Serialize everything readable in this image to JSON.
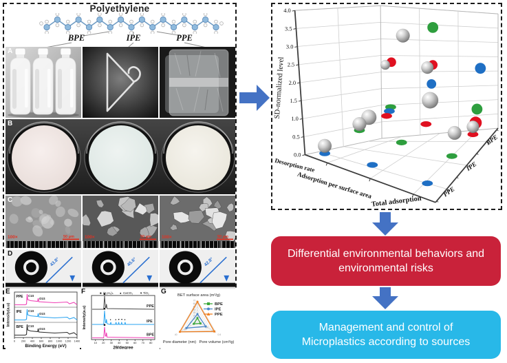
{
  "figure": {
    "title": "Polyethylene",
    "source_labels": [
      "BPE",
      "IPE",
      "PPE"
    ],
    "panel_letters": [
      "A",
      "B",
      "C",
      "D",
      "E",
      "F",
      "G"
    ],
    "sem": {
      "magnification": "100×",
      "scale_bar": "50 μm"
    },
    "contact_angles": [
      "43.8°",
      "45.6°",
      "42.8°"
    ]
  },
  "chart_data": [
    {
      "id": "sd-normalized-3d-scatter",
      "type": "scatter",
      "zlabel": "SD-normalized level",
      "z_ticks": [
        "4.0",
        "3.5",
        "3.0",
        "2.5",
        "2.0",
        "1.5",
        "1.0",
        "0.5",
        "0.0"
      ],
      "zlim": [
        0.0,
        4.0
      ],
      "x_tick_labels": [
        "Desorption rate",
        "Adsorption per surface area",
        "Total adsorption"
      ],
      "y_tick_labels": [
        "BPE",
        "IPE",
        "PPE"
      ],
      "point_style": "gray 3D spheres = data; green/red/blue flat markers = plane projections",
      "values_estimated": [
        {
          "source": "BPE",
          "desorption_rate": 0.5,
          "adsorption_per_surface_area": 2.6,
          "total_adsorption": 0.9
        },
        {
          "source": "IPE",
          "desorption_rate": 1.2,
          "adsorption_per_surface_area": 3.4,
          "total_adsorption": 1.0
        },
        {
          "source": "PPE",
          "desorption_rate": 1.1,
          "adsorption_per_surface_area": 1.6,
          "total_adsorption": 2.6
        }
      ],
      "render": {
        "spheres": [
          [
            192,
            45,
            10
          ],
          [
            166,
            88,
            7
          ],
          [
            228,
            92,
            9
          ],
          [
            232,
            140,
            12
          ],
          [
            142,
            165,
            11
          ],
          [
            128,
            175,
            10
          ],
          [
            295,
            179,
            9
          ],
          [
            268,
            188,
            10
          ],
          [
            77,
            207,
            10
          ]
        ],
        "wall_dots": [
          [
            236,
            33,
            "g",
            8
          ],
          [
            175,
            84,
            "r",
            7
          ],
          [
            236,
            88,
            "r",
            7
          ],
          [
            306,
            93,
            "b",
            8
          ],
          [
            234,
            116,
            "b",
            7
          ],
          [
            301,
            153,
            "g",
            8
          ],
          [
            299,
            173,
            "r",
            9
          ]
        ],
        "floor_dots": [
          [
            174,
            150,
            "g"
          ],
          [
            172,
            156,
            "b"
          ],
          [
            128,
            184,
            "g"
          ],
          [
            168,
            163,
            "r"
          ],
          [
            226,
            175,
            "r"
          ],
          [
            295,
            190,
            "r"
          ],
          [
            190,
            202,
            "g"
          ],
          [
            264,
            222,
            "g"
          ],
          [
            147,
            235,
            "b"
          ],
          [
            228,
            262,
            "b"
          ],
          [
            77,
            218,
            "b"
          ]
        ]
      }
    },
    {
      "id": "xps-survey",
      "type": "line",
      "xlabel": "Binding Energy (eV)",
      "ylabel": "Intensity(a.u)",
      "x_ticks": [
        0,
        200,
        400,
        600,
        800,
        1000,
        1200,
        1400
      ],
      "peaks": [
        {
          "label": "C1S",
          "binding_energy_eV": 285
        },
        {
          "label": "O1S",
          "binding_energy_eV": 532
        }
      ],
      "series": [
        {
          "name": "PPE",
          "color": "#ef3db4"
        },
        {
          "name": "IPE",
          "color": "#29a3f0"
        },
        {
          "name": "BPE",
          "color": "#2b2b2b"
        }
      ]
    },
    {
      "id": "xrd-patterns",
      "type": "line",
      "xlabel": "2θ/degree",
      "ylabel": "Intensity(a.u)",
      "x_ticks": [
        10,
        20,
        30,
        40,
        50,
        60,
        70,
        80
      ],
      "legend": [
        {
          "marker": "■",
          "label": "(C₂H₄)ₙ"
        },
        {
          "marker": "●",
          "label": "CaCO₃"
        },
        {
          "marker": "▼",
          "label": "TiO₂"
        }
      ],
      "main_peaks_2theta": [
        21.5,
        23.9
      ],
      "ipe_minor_peaks_2theta": [
        29.4,
        36.0,
        39.4,
        43.1,
        47.5
      ],
      "series": [
        {
          "name": "PPE",
          "color": "#4a4a4a"
        },
        {
          "name": "IPE",
          "color": "#29a3f0"
        },
        {
          "name": "BPE",
          "color": "#ef3db4"
        }
      ]
    },
    {
      "id": "surface-properties-radar",
      "type": "radar",
      "axes": [
        {
          "label": "BET surface area (m²/g)",
          "max": 70,
          "ticks": [
            10,
            20,
            30,
            40,
            50,
            60,
            70
          ]
        },
        {
          "label": "Pore volume (cm³/g)",
          "max": 0.6,
          "ticks": [
            0.2,
            0.4,
            0.6
          ]
        },
        {
          "label": "Pore diameter (nm)",
          "max": 40,
          "ticks": [
            20,
            40
          ]
        }
      ],
      "series": [
        {
          "name": "BPE",
          "color": "#3aa83a",
          "marker": "■",
          "values": [
            12,
            0.1,
            8
          ]
        },
        {
          "name": "IPE",
          "color": "#4a86c8",
          "marker": "●",
          "values": [
            25,
            0.27,
            24
          ]
        },
        {
          "name": "PPE",
          "color": "#f08020",
          "marker": "▲",
          "values": [
            65,
            0.55,
            38
          ]
        }
      ]
    }
  ],
  "flow": {
    "box1_lines": [
      "Differential environmental behaviors and",
      "environmental risks"
    ],
    "box2_lines": [
      "Management and control of",
      "Microplastics according to sources"
    ]
  },
  "colors": {
    "arrow_blue": "#4472c4",
    "risk_box_red": "#c9223a",
    "management_box_cyan": "#28b8e8",
    "series_green": "#2e9e3e",
    "series_red": "#e01020",
    "series_blue": "#1f6fc4"
  }
}
